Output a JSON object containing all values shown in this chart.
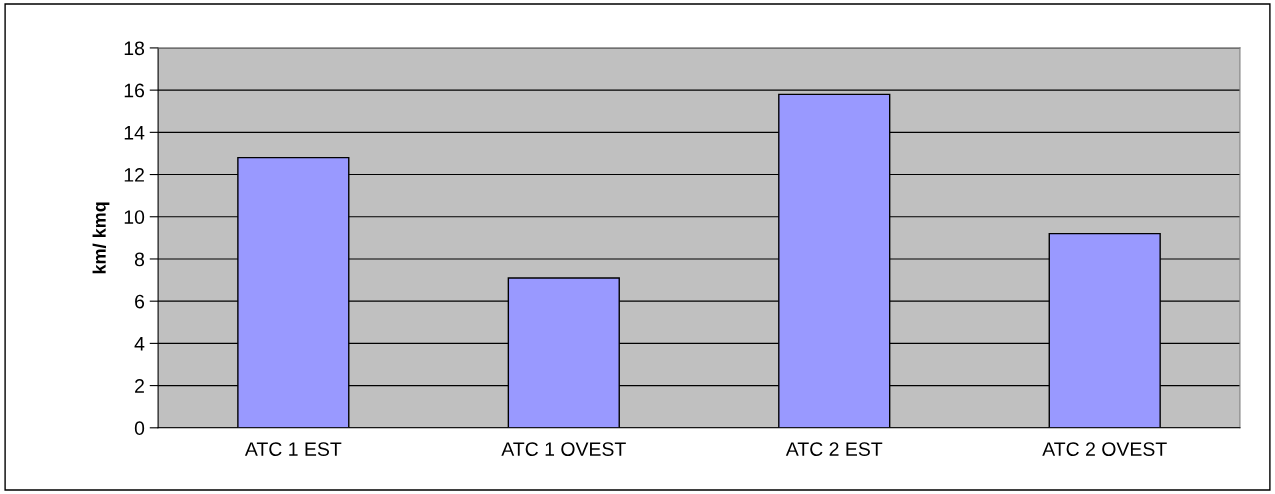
{
  "chart_data": {
    "type": "bar",
    "ylabel": "km/ kmq",
    "categories": [
      "ATC 1 EST",
      "ATC 1 OVEST",
      "ATC 2 EST",
      "ATC 2 OVEST"
    ],
    "values": [
      12.8,
      7.1,
      15.8,
      9.2
    ],
    "color": "#9999ff",
    "ylim": [
      0,
      18
    ],
    "yticks": [
      0,
      2,
      4,
      6,
      8,
      10,
      12,
      14,
      16,
      18
    ],
    "grid": "y"
  }
}
